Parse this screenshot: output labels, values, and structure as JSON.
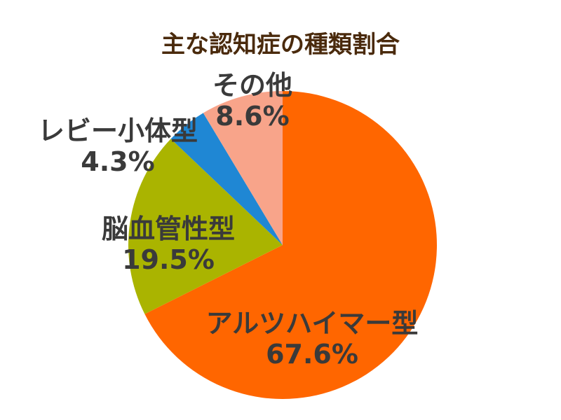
{
  "chart_data": {
    "type": "pie",
    "title": "主な認知症の種類割合",
    "slices": [
      {
        "name": "アルツハイマー型",
        "value": 67.6,
        "label": "67.6%",
        "color": "#ff6600"
      },
      {
        "name": "脳血管性型",
        "value": 19.5,
        "label": "19.5%",
        "color": "#aab400"
      },
      {
        "name": "レビー小体型",
        "value": 4.3,
        "label": "4.3%",
        "color": "#1f87d4"
      },
      {
        "name": "その他",
        "value": 8.6,
        "label": "8.6%",
        "color": "#f8a48a"
      }
    ],
    "start": "12 o'clock",
    "direction": "clockwise"
  }
}
